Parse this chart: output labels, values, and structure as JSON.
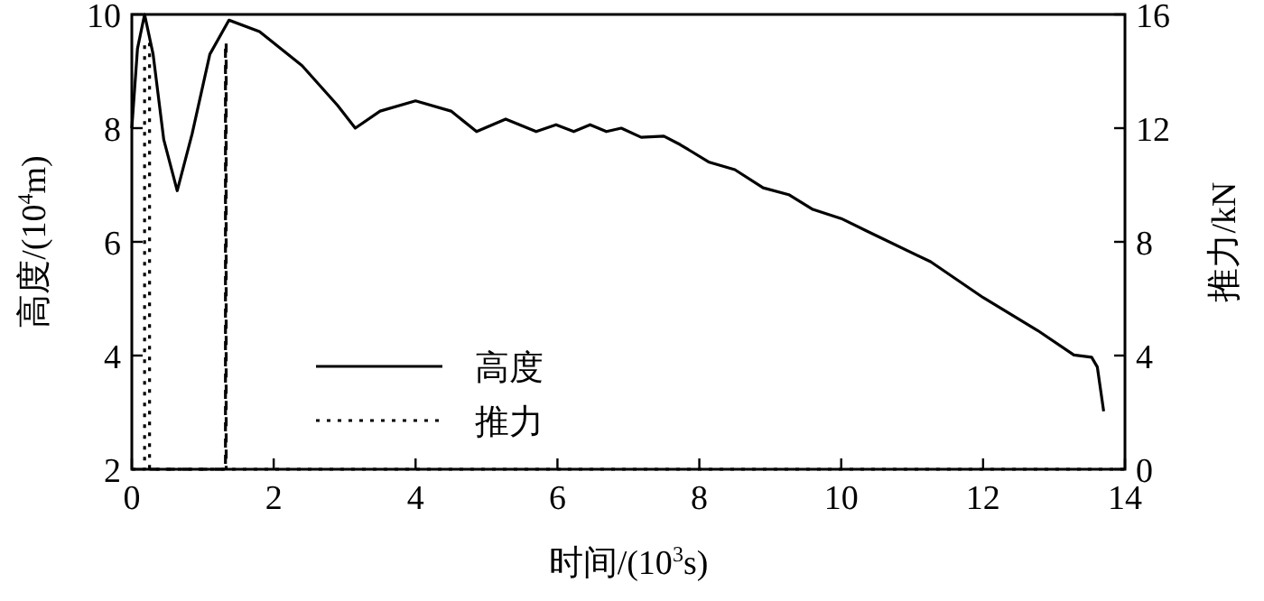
{
  "chart_data": {
    "type": "line",
    "xlabel": "时间/(10$^{3}$s)",
    "ylabel": "高度/(10$^{4}$m)",
    "y2label": "推力/kN",
    "xlim": [
      0,
      14
    ],
    "xticks": [
      0,
      2,
      4,
      6,
      8,
      10,
      12,
      14
    ],
    "ylim": [
      2,
      10
    ],
    "yticks": [
      2,
      4,
      6,
      8,
      10
    ],
    "y2lim": [
      0,
      16
    ],
    "y2ticks": [
      0,
      4,
      8,
      12,
      16
    ],
    "legend": "bottom left",
    "grid": false,
    "series": [
      {
        "name": "高度",
        "color": "#000000",
        "line_style": "solid",
        "x": [
          0,
          0.08,
          0.18,
          0.3,
          0.45,
          0.64,
          0.85,
          1.1,
          1.37,
          1.8,
          2.4,
          2.9,
          3.15,
          3.5,
          4.0,
          4.5,
          4.86,
          5.27,
          5.7,
          5.98,
          6.23,
          6.46,
          6.69,
          6.9,
          7.18,
          7.5,
          7.73,
          8.14,
          8.5,
          8.9,
          9.26,
          9.6,
          10.0,
          10.36,
          11.26,
          12.0,
          12.77,
          13.28,
          13.53,
          13.61,
          13.7
        ],
        "values": [
          8.0,
          9.4,
          10.0,
          9.3,
          7.8,
          6.9,
          7.9,
          9.3,
          9.9,
          9.7,
          9.1,
          8.4,
          8.0,
          8.3,
          8.48,
          8.3,
          7.94,
          8.16,
          7.94,
          8.06,
          7.94,
          8.06,
          7.94,
          8.0,
          7.84,
          7.86,
          7.71,
          7.4,
          7.27,
          6.95,
          6.83,
          6.57,
          6.41,
          6.19,
          5.65,
          5.02,
          4.44,
          4.01,
          3.97,
          3.8,
          3.02
        ]
      },
      {
        "name": "推力",
        "color": "#000000",
        "axis": "y2",
        "line_style": "dotted",
        "x": [
          0,
          0.18,
          0.18,
          0.25,
          0.25,
          14
        ],
        "values": [
          0,
          0,
          15,
          15,
          0,
          0
        ]
      },
      {
        "color": "#000000",
        "axis": "y2",
        "line_style": "dashed",
        "x": [
          0.25,
          1.32,
          1.32,
          1.33,
          1.33
        ],
        "values": [
          0,
          0,
          15,
          15,
          0
        ]
      }
    ]
  }
}
